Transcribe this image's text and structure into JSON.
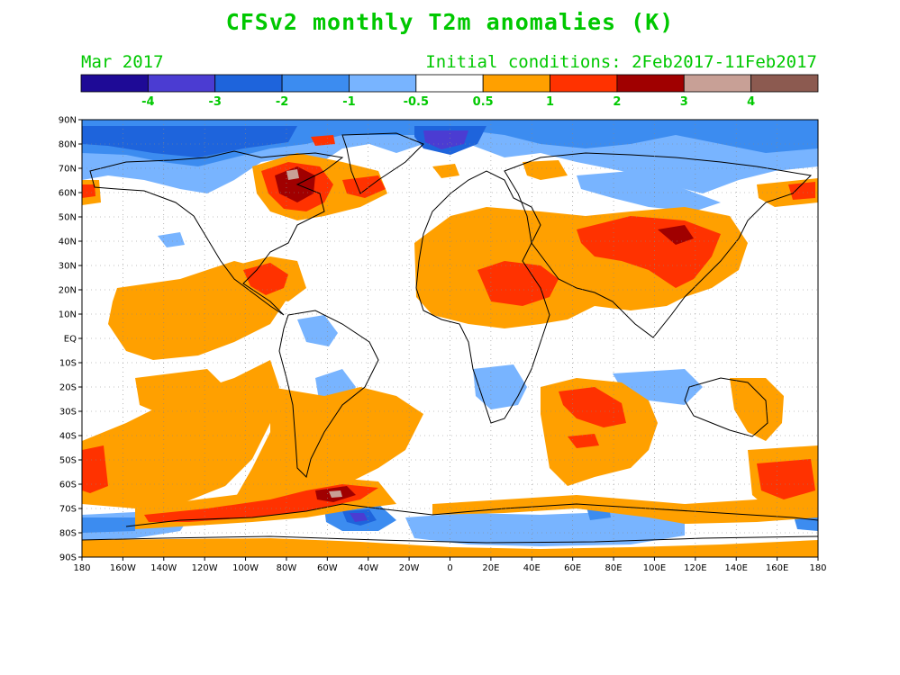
{
  "title": "CFSv2 monthly T2m anomalies (K)",
  "valid_month": "Mar 2017",
  "initial_conditions": "Initial conditions: 2Feb2017-11Feb2017",
  "colorbar": {
    "colors": [
      "#1e0a96",
      "#4b3cd2",
      "#1e64dc",
      "#3c8cf0",
      "#78b4ff",
      "#ffffff",
      "#ffa000",
      "#ff3200",
      "#a00000",
      "#c8a096",
      "#8c5a50"
    ],
    "labels": [
      "-4",
      "-3",
      "-2",
      "-1",
      "-0.5",
      "0.5",
      "1",
      "2",
      "3",
      "4"
    ]
  },
  "map": {
    "lat_labels": [
      "90N",
      "80N",
      "70N",
      "60N",
      "50N",
      "40N",
      "30N",
      "20N",
      "10N",
      "EQ",
      "10S",
      "20S",
      "30S",
      "40S",
      "50S",
      "60S",
      "70S",
      "80S",
      "90S"
    ],
    "lon_labels": [
      "180",
      "160W",
      "140W",
      "120W",
      "100W",
      "80W",
      "60W",
      "40W",
      "20W",
      "0",
      "20E",
      "40E",
      "60E",
      "80E",
      "100E",
      "120E",
      "140E",
      "160E",
      "180"
    ]
  }
}
